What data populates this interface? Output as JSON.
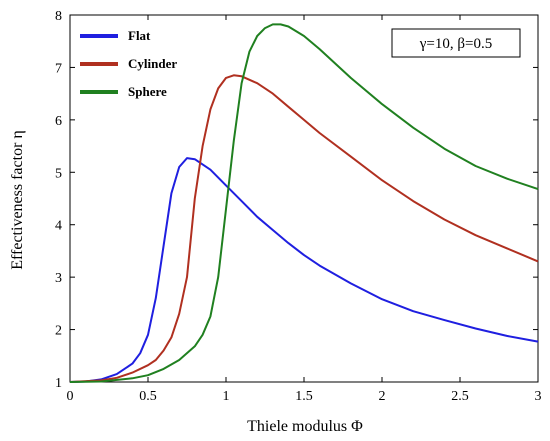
{
  "chart_data": {
    "type": "line",
    "xlabel": "Thiele modulus   Φ",
    "ylabel": "Effectiveness factor   η",
    "xlim": [
      0,
      3
    ],
    "ylim": [
      1,
      8
    ],
    "xticks": [
      0,
      0.5,
      1,
      1.5,
      2,
      2.5,
      3
    ],
    "xtick_labels": [
      "0",
      "0.5",
      "1",
      "1.5",
      "2",
      "2.5",
      "3"
    ],
    "yticks": [
      1,
      2,
      3,
      4,
      5,
      6,
      7,
      8
    ],
    "ytick_labels": [
      "1",
      "2",
      "3",
      "4",
      "5",
      "6",
      "7",
      "8"
    ],
    "grid": false,
    "legend_position": "top-left",
    "annotation": "γ=10, β=0.5",
    "series": [
      {
        "name": "Flat",
        "color": "#1f1fe0",
        "points": [
          [
            0,
            1
          ],
          [
            0.1,
            1.01
          ],
          [
            0.2,
            1.05
          ],
          [
            0.3,
            1.15
          ],
          [
            0.4,
            1.35
          ],
          [
            0.45,
            1.55
          ],
          [
            0.5,
            1.9
          ],
          [
            0.55,
            2.6
          ],
          [
            0.6,
            3.6
          ],
          [
            0.65,
            4.6
          ],
          [
            0.7,
            5.1
          ],
          [
            0.75,
            5.27
          ],
          [
            0.8,
            5.25
          ],
          [
            0.9,
            5.05
          ],
          [
            1.0,
            4.75
          ],
          [
            1.1,
            4.45
          ],
          [
            1.2,
            4.15
          ],
          [
            1.3,
            3.9
          ],
          [
            1.4,
            3.65
          ],
          [
            1.5,
            3.42
          ],
          [
            1.6,
            3.22
          ],
          [
            1.8,
            2.88
          ],
          [
            2.0,
            2.58
          ],
          [
            2.2,
            2.35
          ],
          [
            2.4,
            2.18
          ],
          [
            2.6,
            2.02
          ],
          [
            2.8,
            1.88
          ],
          [
            3.0,
            1.77
          ]
        ]
      },
      {
        "name": "Cylinder",
        "color": "#b03020",
        "points": [
          [
            0,
            1
          ],
          [
            0.2,
            1.03
          ],
          [
            0.3,
            1.08
          ],
          [
            0.4,
            1.18
          ],
          [
            0.5,
            1.32
          ],
          [
            0.55,
            1.42
          ],
          [
            0.6,
            1.6
          ],
          [
            0.65,
            1.85
          ],
          [
            0.7,
            2.3
          ],
          [
            0.75,
            3.0
          ],
          [
            0.8,
            4.5
          ],
          [
            0.85,
            5.5
          ],
          [
            0.9,
            6.2
          ],
          [
            0.95,
            6.6
          ],
          [
            1.0,
            6.8
          ],
          [
            1.05,
            6.85
          ],
          [
            1.1,
            6.83
          ],
          [
            1.2,
            6.7
          ],
          [
            1.3,
            6.5
          ],
          [
            1.4,
            6.25
          ],
          [
            1.5,
            6.0
          ],
          [
            1.6,
            5.75
          ],
          [
            1.8,
            5.3
          ],
          [
            2.0,
            4.85
          ],
          [
            2.2,
            4.45
          ],
          [
            2.4,
            4.1
          ],
          [
            2.6,
            3.8
          ],
          [
            2.8,
            3.55
          ],
          [
            3.0,
            3.3
          ]
        ]
      },
      {
        "name": "Sphere",
        "color": "#208020",
        "points": [
          [
            0,
            1
          ],
          [
            0.2,
            1.01
          ],
          [
            0.4,
            1.07
          ],
          [
            0.5,
            1.13
          ],
          [
            0.6,
            1.25
          ],
          [
            0.7,
            1.42
          ],
          [
            0.8,
            1.68
          ],
          [
            0.85,
            1.9
          ],
          [
            0.9,
            2.25
          ],
          [
            0.95,
            3.0
          ],
          [
            1.0,
            4.3
          ],
          [
            1.05,
            5.6
          ],
          [
            1.1,
            6.7
          ],
          [
            1.15,
            7.3
          ],
          [
            1.2,
            7.6
          ],
          [
            1.25,
            7.75
          ],
          [
            1.3,
            7.82
          ],
          [
            1.35,
            7.82
          ],
          [
            1.4,
            7.78
          ],
          [
            1.5,
            7.6
          ],
          [
            1.6,
            7.35
          ],
          [
            1.8,
            6.8
          ],
          [
            2.0,
            6.3
          ],
          [
            2.2,
            5.85
          ],
          [
            2.4,
            5.45
          ],
          [
            2.6,
            5.12
          ],
          [
            2.8,
            4.88
          ],
          [
            3.0,
            4.68
          ]
        ]
      }
    ]
  }
}
